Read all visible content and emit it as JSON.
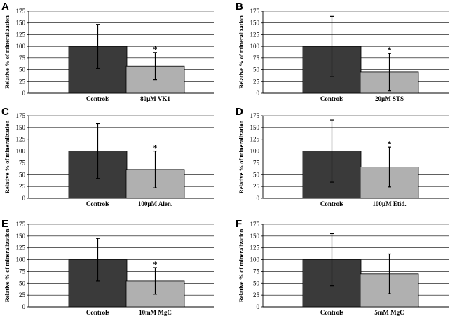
{
  "chart_data": [
    {
      "panel": "A",
      "type": "bar",
      "ylabel": "Relative % of mineralization",
      "ylim": [
        0,
        175
      ],
      "yticks": [
        0,
        25,
        50,
        75,
        100,
        125,
        150,
        175
      ],
      "grid": true,
      "categories": [
        "Controls",
        "80µM VK1"
      ],
      "values": [
        100,
        58
      ],
      "errors": [
        47,
        29
      ],
      "bar_colors": [
        "#3a3a3a",
        "#b0b0b0"
      ],
      "significance": [
        "",
        "*"
      ]
    },
    {
      "panel": "B",
      "type": "bar",
      "ylabel": "Relative % of mineralization",
      "ylim": [
        0,
        175
      ],
      "yticks": [
        0,
        25,
        50,
        75,
        100,
        125,
        150,
        175
      ],
      "grid": true,
      "categories": [
        "Controls",
        "20µM STS"
      ],
      "values": [
        100,
        45
      ],
      "errors": [
        64,
        40
      ],
      "bar_colors": [
        "#3a3a3a",
        "#b0b0b0"
      ],
      "significance": [
        "",
        "*"
      ]
    },
    {
      "panel": "C",
      "type": "bar",
      "ylabel": "Relative % of mineralization",
      "ylim": [
        0,
        175
      ],
      "yticks": [
        0,
        25,
        50,
        75,
        100,
        125,
        150,
        175
      ],
      "grid": true,
      "categories": [
        "Controls",
        "100µM Alen."
      ],
      "values": [
        100,
        61
      ],
      "errors": [
        58,
        39
      ],
      "bar_colors": [
        "#3a3a3a",
        "#b0b0b0"
      ],
      "significance": [
        "",
        "*"
      ]
    },
    {
      "panel": "D",
      "type": "bar",
      "ylabel": "Relative % of mineralization",
      "ylim": [
        0,
        175
      ],
      "yticks": [
        0,
        25,
        50,
        75,
        100,
        125,
        150,
        175
      ],
      "grid": true,
      "categories": [
        "Controls",
        "100µM Etid."
      ],
      "values": [
        100,
        66
      ],
      "errors": [
        66,
        42
      ],
      "bar_colors": [
        "#3a3a3a",
        "#b0b0b0"
      ],
      "significance": [
        "",
        "*"
      ]
    },
    {
      "panel": "E",
      "type": "bar",
      "ylabel": "Relative % of mineralization",
      "ylim": [
        0,
        175
      ],
      "yticks": [
        0,
        25,
        50,
        75,
        100,
        125,
        150,
        175
      ],
      "grid": true,
      "categories": [
        "Controls",
        "10mM MgC"
      ],
      "values": [
        100,
        55
      ],
      "errors": [
        45,
        28
      ],
      "bar_colors": [
        "#3a3a3a",
        "#b0b0b0"
      ],
      "significance": [
        "",
        "*"
      ]
    },
    {
      "panel": "F",
      "type": "bar",
      "ylabel": "Relative % of mineralization",
      "ylim": [
        0,
        175
      ],
      "yticks": [
        0,
        25,
        50,
        75,
        100,
        125,
        150,
        175
      ],
      "grid": true,
      "categories": [
        "Controls",
        "5mM MgC"
      ],
      "values": [
        100,
        70
      ],
      "errors": [
        55,
        42
      ],
      "bar_colors": [
        "#3a3a3a",
        "#b0b0b0"
      ],
      "significance": [
        "",
        ""
      ]
    }
  ]
}
